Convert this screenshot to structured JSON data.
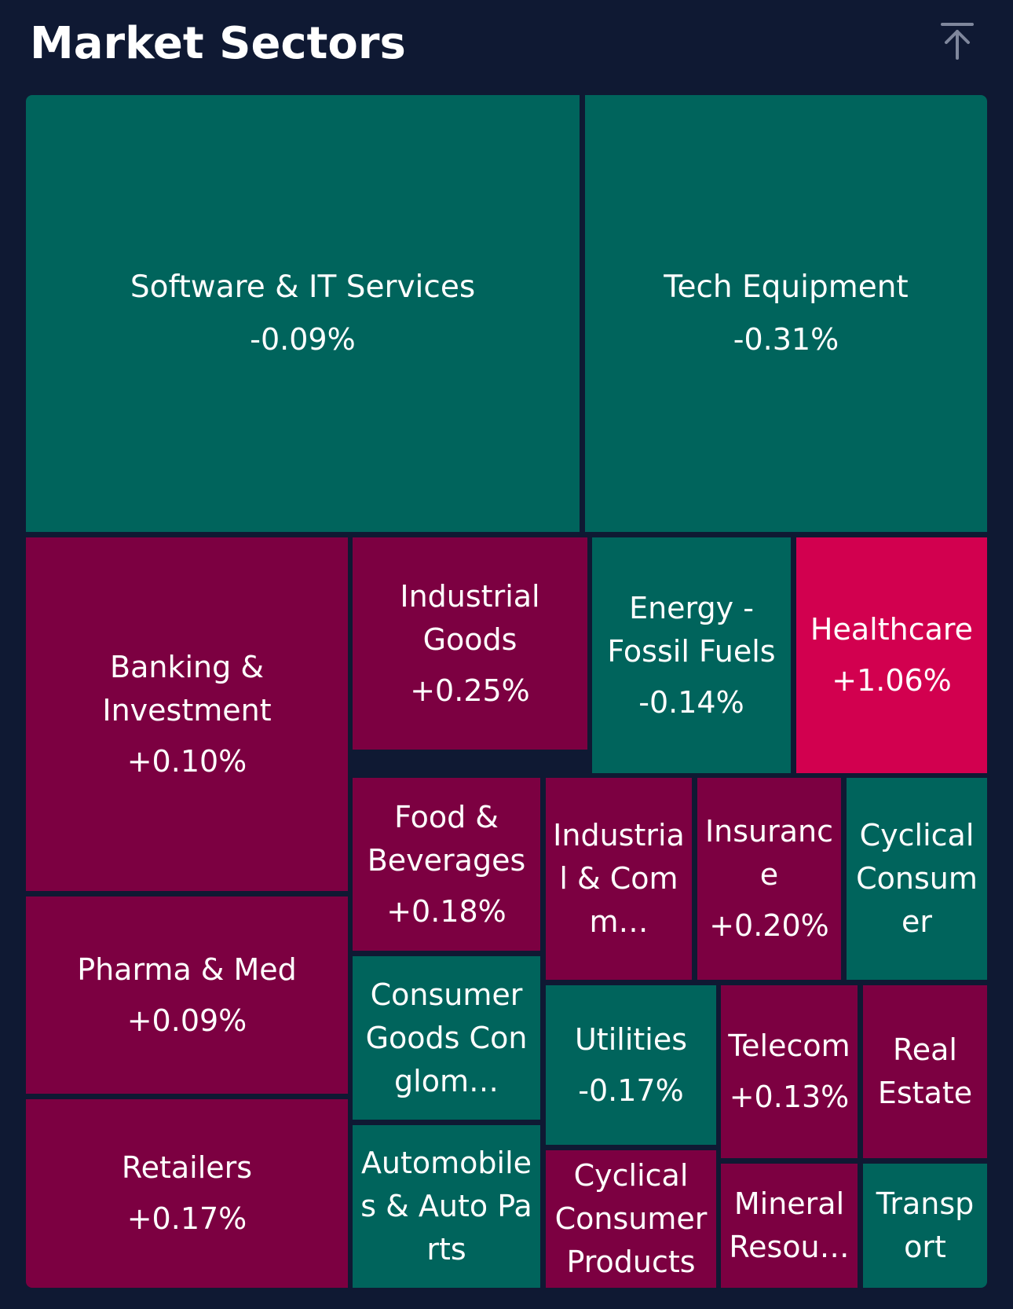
{
  "header": {
    "title": "Market Sectors",
    "scroll_top_icon": "arrow-up-to-line-icon"
  },
  "colors": {
    "background": "#0f1933",
    "negative": "#00645c",
    "positive": "#7c0041",
    "strong_positive": "#d2004f"
  },
  "sectors": [
    {
      "name": "Software & IT Services",
      "change": "-0.09%"
    },
    {
      "name": "Tech Equipment",
      "change": "-0.31%"
    },
    {
      "name": "Banking & Investment",
      "change": "+0.10%"
    },
    {
      "name": "Industrial Goods",
      "change": "+0.25%"
    },
    {
      "name": "Energy - Fossil Fuels",
      "change": "-0.14%"
    },
    {
      "name": "Healthcare",
      "change": "+1.06%"
    },
    {
      "name": "Food & Beverages",
      "change": "+0.18%"
    },
    {
      "name": "Industrial & Comm…",
      "change": ""
    },
    {
      "name": "Insurance",
      "change": "+0.20%"
    },
    {
      "name": "Cyclical Consumer",
      "change": ""
    },
    {
      "name": "Pharma & Med",
      "change": "+0.09%"
    },
    {
      "name": "Consumer Goods Conglom…",
      "change": ""
    },
    {
      "name": "Utilities",
      "change": "-0.17%"
    },
    {
      "name": "Telecom",
      "change": "+0.13%"
    },
    {
      "name": "Real Estate",
      "change": ""
    },
    {
      "name": "Retailers",
      "change": "+0.17%"
    },
    {
      "name": "Automobiles & Auto Parts",
      "change": ""
    },
    {
      "name": "Cyclical Consumer Products",
      "change": ""
    },
    {
      "name": "Mineral Resou…",
      "change": ""
    },
    {
      "name": "Transport",
      "change": ""
    }
  ]
}
